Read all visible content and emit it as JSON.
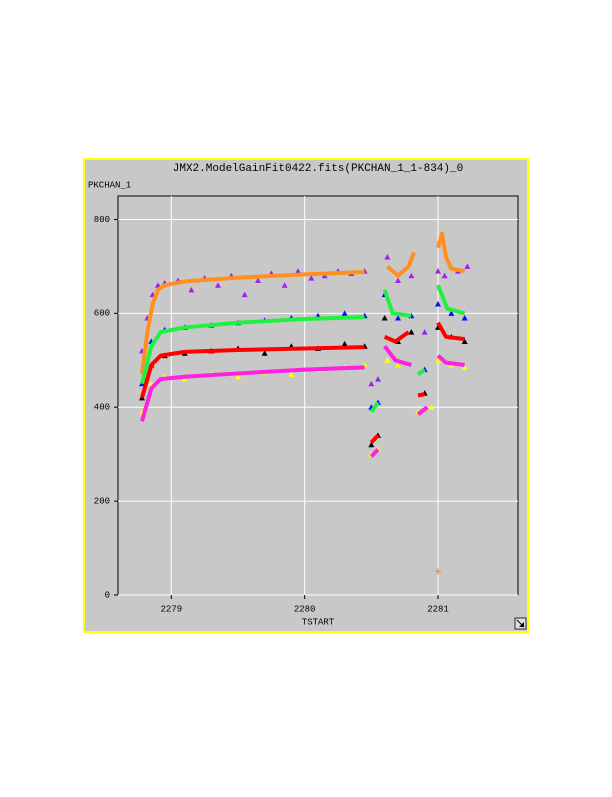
{
  "chart_data": {
    "type": "scatter",
    "title": "JMX2.ModelGainFit0422.fits(PKCHAN_1_1-834)_0",
    "xlabel": "TSTART",
    "ylabel": "PKCHAN_1",
    "xlim": [
      2278.6,
      2281.6
    ],
    "ylim": [
      0,
      850
    ],
    "xticks": [
      2279,
      2280,
      2281
    ],
    "yticks": [
      0,
      200,
      400,
      600,
      800
    ],
    "grid": true,
    "series": [
      {
        "marker": "triangle",
        "color": "#a020f0",
        "x": [
          2278.78,
          2278.82,
          2278.86,
          2278.9,
          2278.95,
          2279.05,
          2279.15,
          2279.25,
          2279.35,
          2279.45,
          2279.55,
          2279.65,
          2279.75,
          2279.85,
          2279.95,
          2280.05,
          2280.15,
          2280.25,
          2280.35,
          2280.45,
          2280.5,
          2280.55,
          2280.62,
          2280.7,
          2280.8,
          2280.9,
          2281.0,
          2281.05,
          2281.15,
          2281.22
        ],
        "values": [
          520,
          590,
          640,
          660,
          665,
          670,
          650,
          675,
          660,
          680,
          640,
          670,
          685,
          660,
          690,
          675,
          680,
          690,
          685,
          690,
          450,
          460,
          720,
          670,
          680,
          560,
          690,
          680,
          690,
          700
        ]
      },
      {
        "marker": "line",
        "color": "#ff9020",
        "x": [
          2278.78,
          2278.82,
          2278.86,
          2278.9,
          2278.95,
          2279.1,
          2279.5,
          2280.0,
          2280.45,
          2280.55,
          2280.62,
          2280.7,
          2280.78,
          2280.82,
          2280.9,
          2281.0,
          2281.03,
          2281.06,
          2281.1,
          2281.2
        ],
        "values": [
          470,
          560,
          620,
          650,
          660,
          668,
          676,
          683,
          688,
          null,
          700,
          680,
          700,
          730,
          null,
          740,
          770,
          720,
          695,
          690
        ]
      },
      {
        "marker": "triangle",
        "color": "#0010ff",
        "x": [
          2278.78,
          2278.85,
          2278.95,
          2279.1,
          2279.3,
          2279.5,
          2279.7,
          2279.9,
          2280.1,
          2280.3,
          2280.45,
          2280.5,
          2280.55,
          2280.6,
          2280.7,
          2280.8,
          2280.9,
          2281.0,
          2281.1,
          2281.2
        ],
        "values": [
          450,
          540,
          565,
          570,
          575,
          580,
          585,
          590,
          595,
          600,
          595,
          400,
          410,
          640,
          590,
          595,
          480,
          620,
          600,
          590
        ]
      },
      {
        "marker": "line",
        "color": "#20f040",
        "x": [
          2278.78,
          2278.85,
          2278.92,
          2279.1,
          2279.5,
          2280.0,
          2280.45,
          2280.48,
          2280.5,
          2280.55,
          2280.58,
          2280.6,
          2280.66,
          2280.8,
          2280.83,
          2280.85,
          2280.9,
          2280.95,
          2281.0,
          2281.07,
          2281.2
        ],
        "values": [
          450,
          530,
          560,
          570,
          580,
          588,
          592,
          null,
          390,
          410,
          null,
          650,
          600,
          595,
          null,
          470,
          480,
          null,
          660,
          610,
          600
        ]
      },
      {
        "marker": "triangle",
        "color": "#000000",
        "x": [
          2278.78,
          2278.85,
          2278.95,
          2279.1,
          2279.3,
          2279.5,
          2279.7,
          2279.9,
          2280.1,
          2280.3,
          2280.45,
          2280.5,
          2280.55,
          2280.6,
          2280.7,
          2280.8,
          2280.9,
          2281.0,
          2281.1,
          2281.2
        ],
        "values": [
          420,
          490,
          510,
          515,
          520,
          525,
          515,
          530,
          525,
          535,
          530,
          320,
          340,
          590,
          540,
          560,
          430,
          570,
          550,
          540
        ]
      },
      {
        "marker": "line",
        "color": "#ff0000",
        "x": [
          2278.78,
          2278.85,
          2278.92,
          2279.1,
          2279.5,
          2280.0,
          2280.45,
          2280.48,
          2280.5,
          2280.55,
          2280.58,
          2280.6,
          2280.68,
          2280.78,
          2280.82,
          2280.85,
          2280.9,
          2280.95,
          2281.0,
          2281.06,
          2281.2
        ],
        "values": [
          420,
          490,
          510,
          518,
          522,
          525,
          528,
          null,
          325,
          340,
          null,
          550,
          540,
          560,
          null,
          425,
          428,
          null,
          580,
          550,
          545
        ]
      },
      {
        "marker": "triangle",
        "color": "#ffff00",
        "x": [
          2278.78,
          2278.85,
          2278.95,
          2279.1,
          2279.3,
          2279.5,
          2279.7,
          2279.9,
          2280.1,
          2280.3,
          2280.45,
          2280.5,
          2280.55,
          2280.62,
          2280.7,
          2280.85,
          2280.95,
          2281.0,
          2281.1,
          2281.2
        ],
        "values": [
          390,
          450,
          465,
          460,
          470,
          465,
          475,
          470,
          480,
          485,
          490,
          300,
          310,
          500,
          490,
          390,
          400,
          500,
          490,
          485
        ]
      },
      {
        "marker": "line",
        "color": "#ff20e0",
        "x": [
          2278.78,
          2278.85,
          2278.92,
          2279.1,
          2279.5,
          2280.0,
          2280.45,
          2280.48,
          2280.5,
          2280.55,
          2280.58,
          2280.6,
          2280.68,
          2280.8,
          2280.83,
          2280.85,
          2280.92,
          2280.96,
          2281.0,
          2281.06,
          2281.2
        ],
        "values": [
          370,
          440,
          460,
          465,
          472,
          480,
          485,
          null,
          295,
          310,
          null,
          530,
          500,
          490,
          null,
          385,
          400,
          null,
          510,
          495,
          490
        ]
      },
      {
        "marker": "plus",
        "color": "#ff9020",
        "x": [
          2281.0
        ],
        "values": [
          50
        ]
      }
    ]
  }
}
